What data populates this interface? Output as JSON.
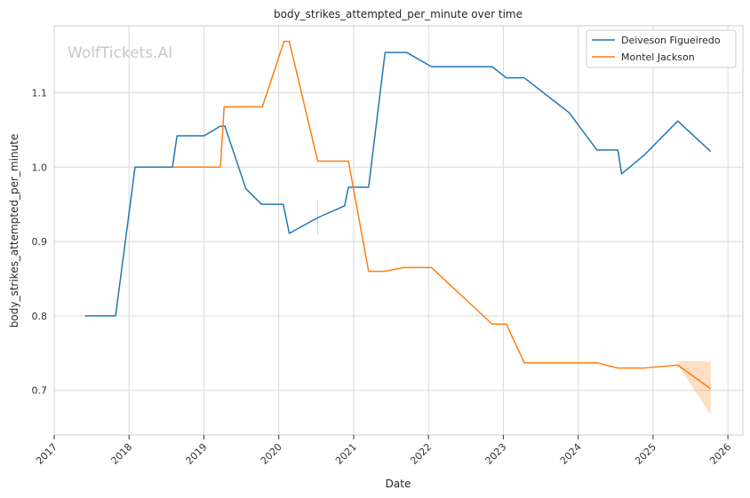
{
  "chart_data": {
    "type": "line",
    "title": "body_strikes_attempted_per_minute over time",
    "xlabel": "Date",
    "ylabel": "body_strikes_attempted_per_minute",
    "watermark": "WolfTickets.AI",
    "xlim": [
      2017.0,
      2026.2
    ],
    "ylim": [
      0.64,
      1.19
    ],
    "x_ticks": [
      2017,
      2018,
      2019,
      2020,
      2021,
      2022,
      2023,
      2024,
      2025,
      2026
    ],
    "x_tick_labels": [
      "2017",
      "2018",
      "2019",
      "2020",
      "2021",
      "2022",
      "2023",
      "2024",
      "2025",
      "2026"
    ],
    "y_ticks": [
      0.7,
      0.8,
      0.9,
      1.0,
      1.1
    ],
    "y_tick_labels": [
      "0.7",
      "0.8",
      "0.9",
      "1.0",
      "1.1"
    ],
    "grid": true,
    "legend_position": "top-right",
    "series": [
      {
        "name": "Deiveson Figueiredo",
        "color": "#1f77b4",
        "points": [
          [
            2017.41,
            0.8
          ],
          [
            2017.82,
            0.8
          ],
          [
            2018.08,
            1.0
          ],
          [
            2018.58,
            1.0
          ],
          [
            2018.64,
            1.042
          ],
          [
            2019.0,
            1.042
          ],
          [
            2019.22,
            1.055
          ],
          [
            2019.28,
            1.055
          ],
          [
            2019.56,
            0.971
          ],
          [
            2019.77,
            0.95
          ],
          [
            2020.06,
            0.95
          ],
          [
            2020.14,
            0.911
          ],
          [
            2020.52,
            0.932
          ],
          [
            2020.88,
            0.948
          ],
          [
            2020.93,
            0.973
          ],
          [
            2021.2,
            0.973
          ],
          [
            2021.42,
            1.154
          ],
          [
            2021.71,
            1.154
          ],
          [
            2022.04,
            1.135
          ],
          [
            2022.85,
            1.135
          ],
          [
            2023.04,
            1.12
          ],
          [
            2023.28,
            1.12
          ],
          [
            2023.88,
            1.073
          ],
          [
            2024.25,
            1.023
          ],
          [
            2024.53,
            1.023
          ],
          [
            2024.58,
            0.991
          ],
          [
            2024.88,
            1.016
          ],
          [
            2025.33,
            1.062
          ],
          [
            2025.77,
            1.021
          ]
        ]
      },
      {
        "name": "Montel Jackson",
        "color": "#ff7f0e",
        "points": [
          [
            2018.58,
            1.0
          ],
          [
            2019.22,
            1.0
          ],
          [
            2019.27,
            1.081
          ],
          [
            2019.78,
            1.081
          ],
          [
            2020.07,
            1.169
          ],
          [
            2020.14,
            1.169
          ],
          [
            2020.52,
            1.008
          ],
          [
            2020.93,
            1.008
          ],
          [
            2021.2,
            0.86
          ],
          [
            2021.42,
            0.86
          ],
          [
            2021.67,
            0.865
          ],
          [
            2022.04,
            0.865
          ],
          [
            2022.85,
            0.789
          ],
          [
            2023.04,
            0.789
          ],
          [
            2023.28,
            0.737
          ],
          [
            2024.25,
            0.737
          ],
          [
            2024.53,
            0.73
          ],
          [
            2024.88,
            0.73
          ],
          [
            2025.33,
            0.734
          ],
          [
            2025.77,
            0.702
          ]
        ]
      }
    ],
    "confidence_bands": [
      {
        "series": "Deiveson Figueiredo",
        "color": "#1f77b4",
        "x": [
          2020.52
        ],
        "lower": [
          0.91
        ],
        "upper": [
          0.955
        ]
      },
      {
        "series": "Montel Jackson",
        "color": "#ff7f0e",
        "x": [
          2025.33,
          2025.77
        ],
        "lower": [
          0.734,
          0.667
        ],
        "upper": [
          0.739,
          0.739
        ]
      }
    ]
  }
}
